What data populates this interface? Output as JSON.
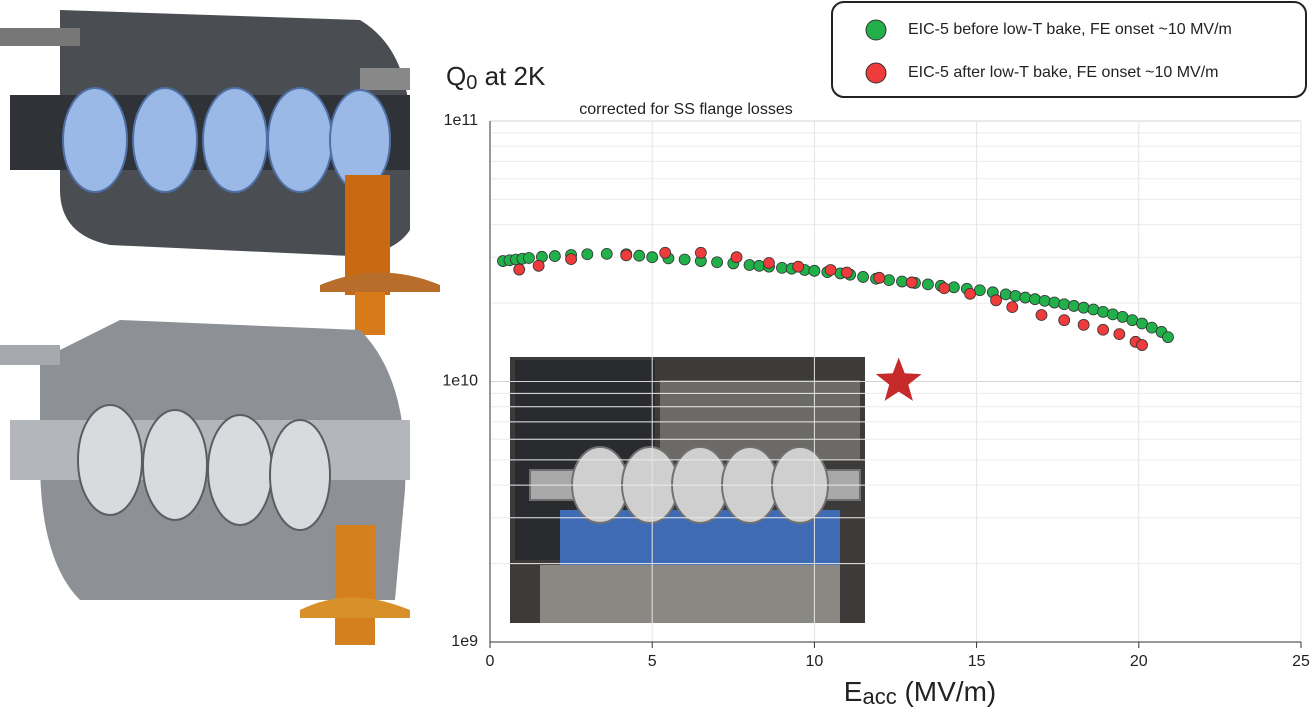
{
  "chart_data": {
    "type": "scatter",
    "title": {
      "main": "Q",
      "sub": "0",
      "rest": " at 2K"
    },
    "subtitle": "corrected for SS flange losses",
    "x_label": {
      "main": "E",
      "sub": "acc",
      "rest": " (MV/m)"
    },
    "xlim": [
      0,
      25
    ],
    "xticks": [
      0,
      5,
      10,
      15,
      20,
      25
    ],
    "ylim": [
      1000000000.0,
      100000000000.0
    ],
    "log_y": true,
    "yticks": [
      {
        "value": 1000000000.0,
        "label": "1e9"
      },
      {
        "value": 10000000000.0,
        "label": "1e10"
      },
      {
        "value": 100000000000.0,
        "label": "1e11"
      }
    ],
    "grid": true,
    "legend": "top-right",
    "series": [
      {
        "name": "EIC-5 before low-T bake, FE onset ~10 MV/m",
        "color": "#22b04b",
        "x": [
          0.4,
          0.6,
          0.8,
          1.0,
          1.2,
          1.6,
          2.0,
          2.5,
          3.0,
          3.6,
          4.2,
          4.6,
          5.0,
          5.5,
          6.0,
          6.5,
          7.0,
          7.5,
          8.0,
          8.3,
          8.6,
          9.0,
          9.3,
          9.7,
          10.0,
          10.4,
          10.8,
          11.1,
          11.5,
          11.9,
          12.3,
          12.7,
          13.1,
          13.5,
          13.9,
          14.3,
          14.7,
          15.1,
          15.5,
          15.9,
          16.2,
          16.5,
          16.8,
          17.1,
          17.4,
          17.7,
          18.0,
          18.3,
          18.6,
          18.9,
          19.2,
          19.5,
          19.8,
          20.1,
          20.4,
          20.7,
          20.9
        ],
        "values": [
          29000000000.0,
          29200000000.0,
          29400000000.0,
          29600000000.0,
          29800000000.0,
          30100000000.0,
          30300000000.0,
          30600000000.0,
          30800000000.0,
          30900000000.0,
          30800000000.0,
          30400000000.0,
          30000000000.0,
          29700000000.0,
          29400000000.0,
          29000000000.0,
          28700000000.0,
          28400000000.0,
          28000000000.0,
          27800000000.0,
          27600000000.0,
          27300000000.0,
          27100000000.0,
          26800000000.0,
          26600000000.0,
          26300000000.0,
          26000000000.0,
          25700000000.0,
          25200000000.0,
          24800000000.0,
          24500000000.0,
          24200000000.0,
          23900000000.0,
          23600000000.0,
          23300000000.0,
          23000000000.0,
          22700000000.0,
          22400000000.0,
          22000000000.0,
          21600000000.0,
          21300000000.0,
          21000000000.0,
          20700000000.0,
          20400000000.0,
          20100000000.0,
          19800000000.0,
          19500000000.0,
          19200000000.0,
          18900000000.0,
          18500000000.0,
          18100000000.0,
          17700000000.0,
          17200000000.0,
          16700000000.0,
          16100000000.0,
          15500000000.0,
          14800000000.0
        ]
      },
      {
        "name": "EIC-5 after low-T bake, FE onset ~10 MV/m",
        "color": "#ee3b3b",
        "x": [
          0.9,
          1.5,
          2.5,
          4.2,
          5.4,
          6.5,
          7.6,
          8.6,
          9.5,
          10.5,
          11.0,
          12.0,
          13.0,
          14.0,
          14.8,
          15.6,
          16.1,
          17.0,
          17.7,
          18.3,
          18.9,
          19.4,
          19.9,
          20.1
        ],
        "values": [
          26900000000.0,
          27800000000.0,
          29500000000.0,
          30500000000.0,
          31200000000.0,
          31200000000.0,
          30000000000.0,
          28500000000.0,
          27600000000.0,
          26800000000.0,
          26200000000.0,
          25000000000.0,
          24000000000.0,
          22800000000.0,
          21700000000.0,
          20500000000.0,
          19300000000.0,
          18000000000.0,
          17200000000.0,
          16500000000.0,
          15800000000.0,
          15200000000.0,
          14200000000.0,
          13800000000.0
        ]
      }
    ],
    "markers": [
      {
        "x": 12.6,
        "y": 10000000000.0,
        "color": "#c62a2a"
      }
    ]
  }
}
